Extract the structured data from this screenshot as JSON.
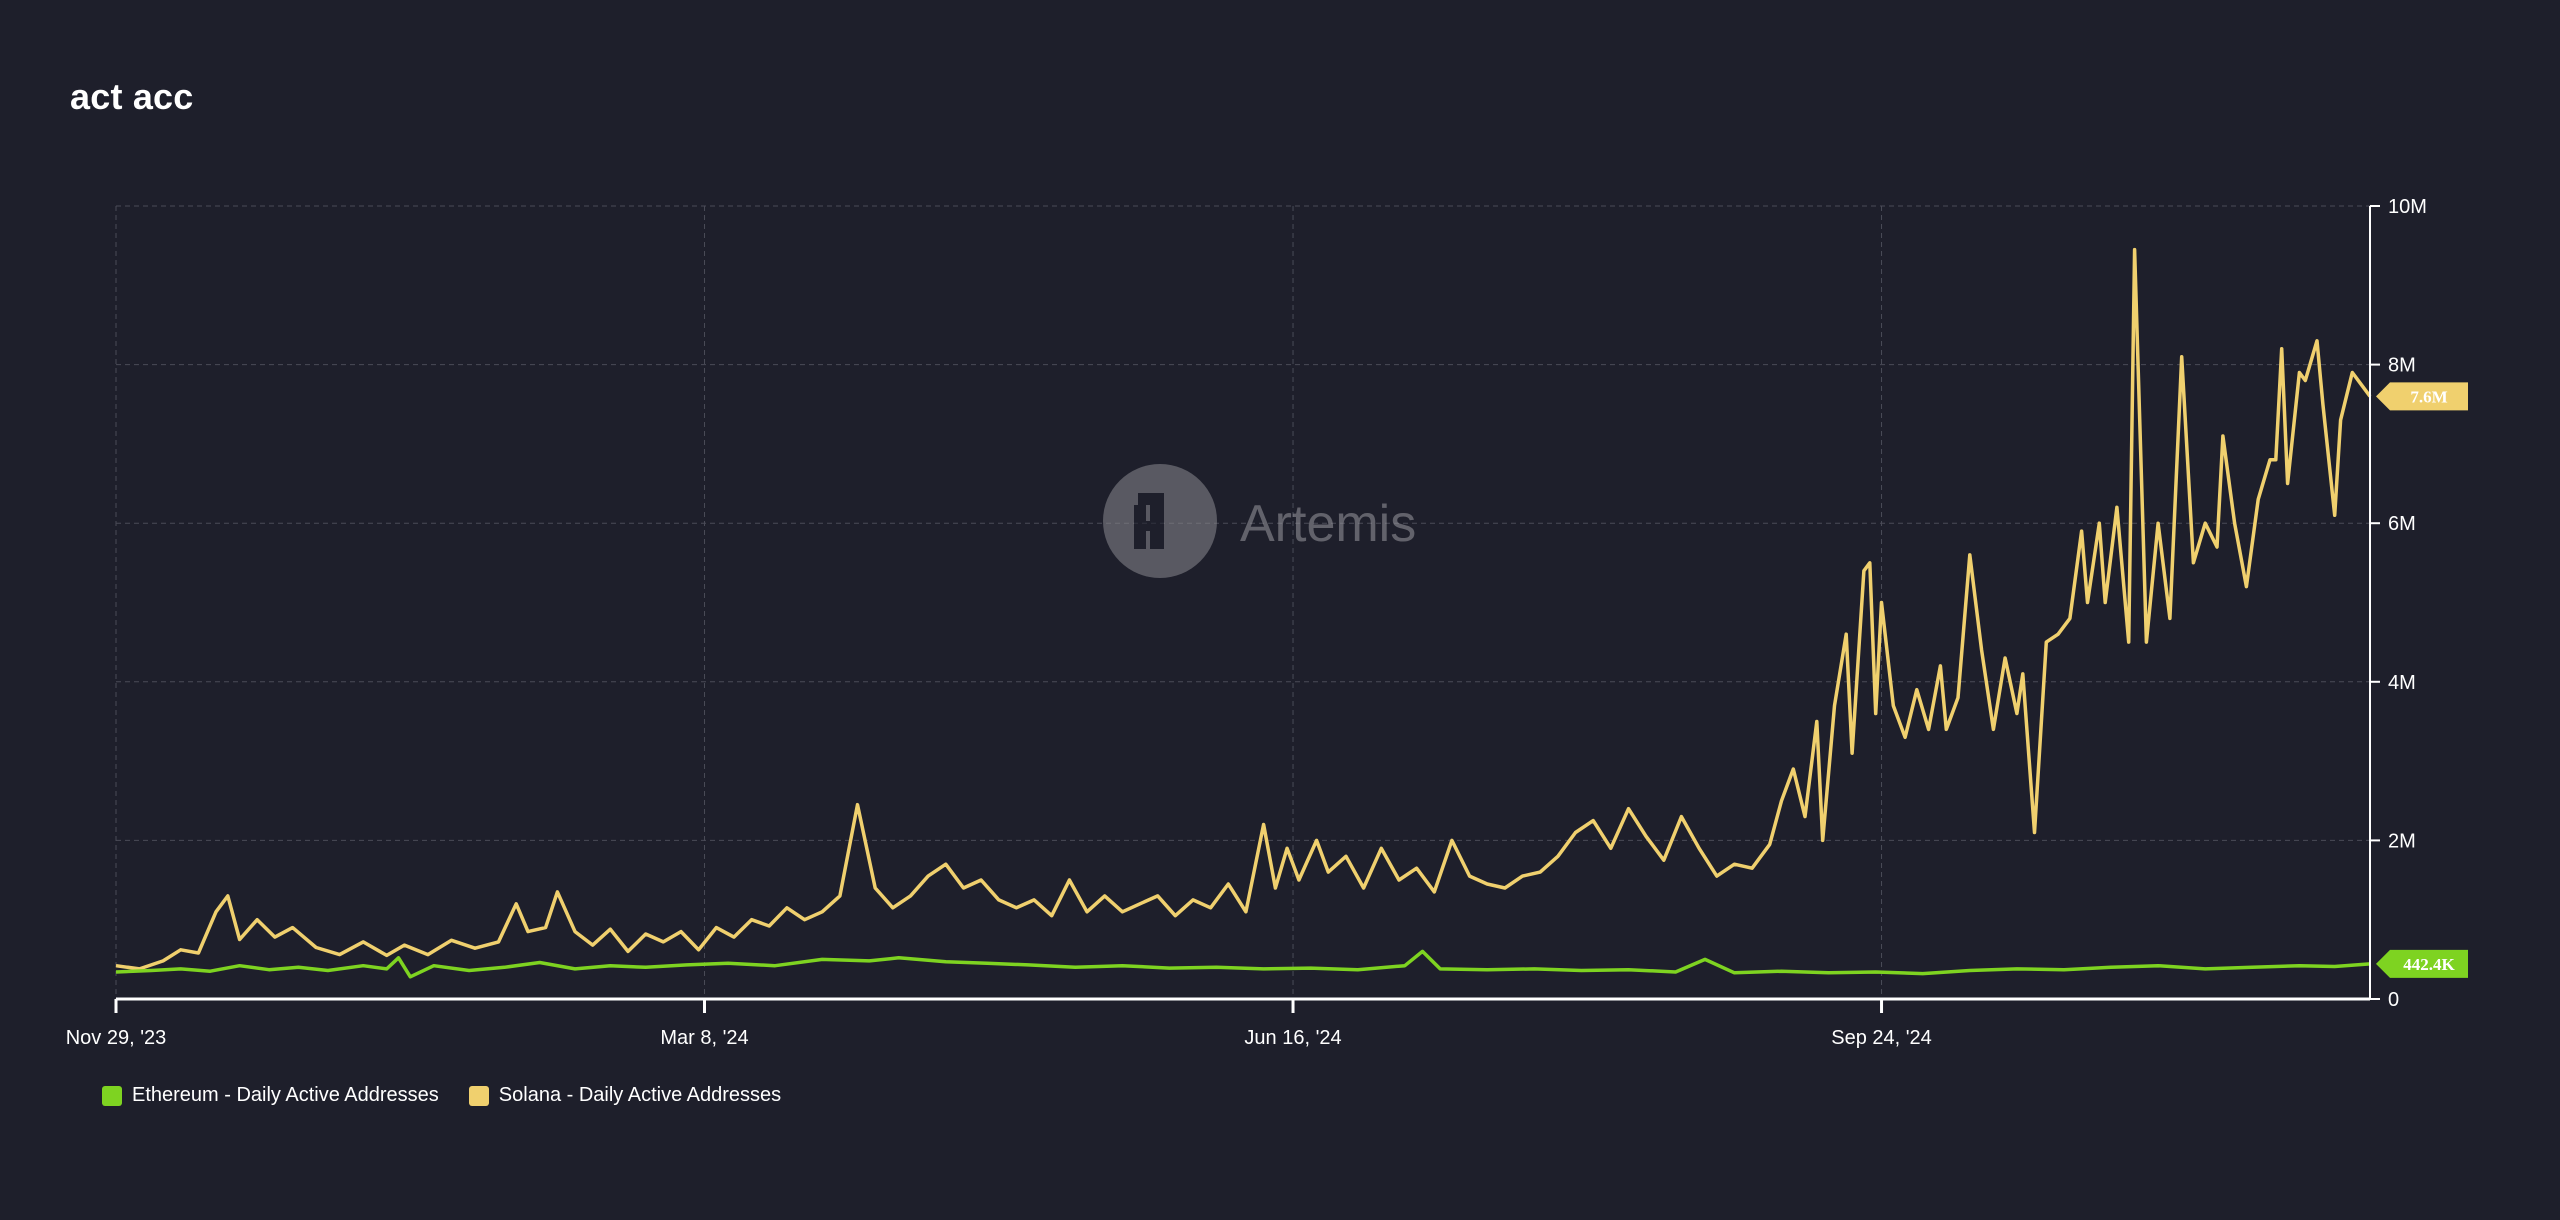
{
  "title": "act acc",
  "watermark": {
    "text": "Artemis",
    "icon": "artemis-logo-icon"
  },
  "colors": {
    "background": "#1e1f2b",
    "ethereum": "#7ed321",
    "solana": "#f0d06e",
    "grid": "#4a4b57",
    "axis": "#ffffff",
    "text": "#ffffff"
  },
  "legend": [
    {
      "label": "Ethereum - Daily Active Addresses",
      "color": "#7ed321"
    },
    {
      "label": "Solana - Daily Active Addresses",
      "color": "#f0d06e"
    }
  ],
  "last_value_labels": {
    "ethereum": "442.4K",
    "solana": "7.6M"
  },
  "chart_data": {
    "type": "line",
    "x_start": "2023-11-29",
    "x_end": "2024-12-16",
    "x_ticks": [
      {
        "date": "2023-11-29",
        "label": "Nov 29, '23"
      },
      {
        "date": "2024-03-08",
        "label": "Mar 8, '24"
      },
      {
        "date": "2024-06-16",
        "label": "Jun 16, '24"
      },
      {
        "date": "2024-09-24",
        "label": "Sep 24, '24"
      }
    ],
    "y_ticks": [
      {
        "value": 0,
        "label": "0"
      },
      {
        "value": 2000000,
        "label": "2M"
      },
      {
        "value": 4000000,
        "label": "4M"
      },
      {
        "value": 6000000,
        "label": "6M"
      },
      {
        "value": 8000000,
        "label": "8M"
      },
      {
        "value": 10000000,
        "label": "10M"
      }
    ],
    "ylim": [
      0,
      10000000
    ],
    "grid": true,
    "legend_position": "bottom-left",
    "series": [
      {
        "name": "Solana - Daily Active Addresses",
        "color": "#f0d06e",
        "points": [
          [
            "2023-11-29",
            420000
          ],
          [
            "2023-12-03",
            380000
          ],
          [
            "2023-12-07",
            480000
          ],
          [
            "2023-12-10",
            620000
          ],
          [
            "2023-12-13",
            580000
          ],
          [
            "2023-12-16",
            1100000
          ],
          [
            "2023-12-18",
            1300000
          ],
          [
            "2023-12-20",
            750000
          ],
          [
            "2023-12-23",
            1000000
          ],
          [
            "2023-12-26",
            780000
          ],
          [
            "2023-12-29",
            900000
          ],
          [
            "2024-01-02",
            650000
          ],
          [
            "2024-01-06",
            560000
          ],
          [
            "2024-01-10",
            720000
          ],
          [
            "2024-01-14",
            550000
          ],
          [
            "2024-01-17",
            680000
          ],
          [
            "2024-01-21",
            560000
          ],
          [
            "2024-01-25",
            740000
          ],
          [
            "2024-01-29",
            640000
          ],
          [
            "2024-02-02",
            720000
          ],
          [
            "2024-02-05",
            1200000
          ],
          [
            "2024-02-07",
            850000
          ],
          [
            "2024-02-10",
            900000
          ],
          [
            "2024-02-12",
            1350000
          ],
          [
            "2024-02-15",
            850000
          ],
          [
            "2024-02-18",
            680000
          ],
          [
            "2024-02-21",
            880000
          ],
          [
            "2024-02-24",
            600000
          ],
          [
            "2024-02-27",
            820000
          ],
          [
            "2024-03-01",
            720000
          ],
          [
            "2024-03-04",
            850000
          ],
          [
            "2024-03-07",
            620000
          ],
          [
            "2024-03-10",
            900000
          ],
          [
            "2024-03-13",
            780000
          ],
          [
            "2024-03-16",
            1000000
          ],
          [
            "2024-03-19",
            920000
          ],
          [
            "2024-03-22",
            1150000
          ],
          [
            "2024-03-25",
            1000000
          ],
          [
            "2024-03-28",
            1100000
          ],
          [
            "2024-03-31",
            1300000
          ],
          [
            "2024-04-03",
            2450000
          ],
          [
            "2024-04-06",
            1400000
          ],
          [
            "2024-04-09",
            1150000
          ],
          [
            "2024-04-12",
            1300000
          ],
          [
            "2024-04-15",
            1550000
          ],
          [
            "2024-04-18",
            1700000
          ],
          [
            "2024-04-21",
            1400000
          ],
          [
            "2024-04-24",
            1500000
          ],
          [
            "2024-04-27",
            1250000
          ],
          [
            "2024-04-30",
            1150000
          ],
          [
            "2024-05-03",
            1250000
          ],
          [
            "2024-05-06",
            1050000
          ],
          [
            "2024-05-09",
            1500000
          ],
          [
            "2024-05-12",
            1100000
          ],
          [
            "2024-05-15",
            1300000
          ],
          [
            "2024-05-18",
            1100000
          ],
          [
            "2024-05-21",
            1200000
          ],
          [
            "2024-05-24",
            1300000
          ],
          [
            "2024-05-27",
            1050000
          ],
          [
            "2024-05-30",
            1250000
          ],
          [
            "2024-06-02",
            1150000
          ],
          [
            "2024-06-05",
            1450000
          ],
          [
            "2024-06-08",
            1100000
          ],
          [
            "2024-06-11",
            2200000
          ],
          [
            "2024-06-13",
            1400000
          ],
          [
            "2024-06-15",
            1900000
          ],
          [
            "2024-06-17",
            1500000
          ],
          [
            "2024-06-20",
            2000000
          ],
          [
            "2024-06-22",
            1600000
          ],
          [
            "2024-06-25",
            1800000
          ],
          [
            "2024-06-28",
            1400000
          ],
          [
            "2024-07-01",
            1900000
          ],
          [
            "2024-07-04",
            1500000
          ],
          [
            "2024-07-07",
            1650000
          ],
          [
            "2024-07-10",
            1350000
          ],
          [
            "2024-07-13",
            2000000
          ],
          [
            "2024-07-16",
            1550000
          ],
          [
            "2024-07-19",
            1450000
          ],
          [
            "2024-07-22",
            1400000
          ],
          [
            "2024-07-25",
            1550000
          ],
          [
            "2024-07-28",
            1600000
          ],
          [
            "2024-07-31",
            1800000
          ],
          [
            "2024-08-03",
            2100000
          ],
          [
            "2024-08-06",
            2250000
          ],
          [
            "2024-08-09",
            1900000
          ],
          [
            "2024-08-12",
            2400000
          ],
          [
            "2024-08-15",
            2050000
          ],
          [
            "2024-08-18",
            1750000
          ],
          [
            "2024-08-21",
            2300000
          ],
          [
            "2024-08-24",
            1900000
          ],
          [
            "2024-08-27",
            1550000
          ],
          [
            "2024-08-30",
            1700000
          ],
          [
            "2024-09-02",
            1650000
          ],
          [
            "2024-09-05",
            1950000
          ],
          [
            "2024-09-07",
            2500000
          ],
          [
            "2024-09-09",
            2900000
          ],
          [
            "2024-09-11",
            2300000
          ],
          [
            "2024-09-13",
            3500000
          ],
          [
            "2024-09-14",
            2000000
          ],
          [
            "2024-09-16",
            3700000
          ],
          [
            "2024-09-18",
            4600000
          ],
          [
            "2024-09-19",
            3100000
          ],
          [
            "2024-09-21",
            5400000
          ],
          [
            "2024-09-22",
            5500000
          ],
          [
            "2024-09-23",
            3600000
          ],
          [
            "2024-09-24",
            5000000
          ],
          [
            "2024-09-26",
            3700000
          ],
          [
            "2024-09-28",
            3300000
          ],
          [
            "2024-09-30",
            3900000
          ],
          [
            "2024-10-02",
            3400000
          ],
          [
            "2024-10-04",
            4200000
          ],
          [
            "2024-10-05",
            3400000
          ],
          [
            "2024-10-07",
            3800000
          ],
          [
            "2024-10-09",
            5600000
          ],
          [
            "2024-10-11",
            4400000
          ],
          [
            "2024-10-13",
            3400000
          ],
          [
            "2024-10-15",
            4300000
          ],
          [
            "2024-10-17",
            3600000
          ],
          [
            "2024-10-18",
            4100000
          ],
          [
            "2024-10-20",
            2100000
          ],
          [
            "2024-10-22",
            4500000
          ],
          [
            "2024-10-24",
            4600000
          ],
          [
            "2024-10-26",
            4800000
          ],
          [
            "2024-10-28",
            5900000
          ],
          [
            "2024-10-29",
            5000000
          ],
          [
            "2024-10-31",
            6000000
          ],
          [
            "2024-11-01",
            5000000
          ],
          [
            "2024-11-03",
            6200000
          ],
          [
            "2024-11-05",
            4500000
          ],
          [
            "2024-11-06",
            9450000
          ],
          [
            "2024-11-08",
            4500000
          ],
          [
            "2024-11-10",
            6000000
          ],
          [
            "2024-11-12",
            4800000
          ],
          [
            "2024-11-14",
            8100000
          ],
          [
            "2024-11-16",
            5500000
          ],
          [
            "2024-11-18",
            6000000
          ],
          [
            "2024-11-20",
            5700000
          ],
          [
            "2024-11-21",
            7100000
          ],
          [
            "2024-11-23",
            6000000
          ],
          [
            "2024-11-25",
            5200000
          ],
          [
            "2024-11-27",
            6300000
          ],
          [
            "2024-11-29",
            6800000
          ],
          [
            "2024-11-30",
            6800000
          ],
          [
            "2024-12-01",
            8200000
          ],
          [
            "2024-12-02",
            6500000
          ],
          [
            "2024-12-04",
            7900000
          ],
          [
            "2024-12-05",
            7800000
          ],
          [
            "2024-12-07",
            8300000
          ],
          [
            "2024-12-08",
            7500000
          ],
          [
            "2024-12-10",
            6100000
          ],
          [
            "2024-12-11",
            7300000
          ],
          [
            "2024-12-13",
            7900000
          ],
          [
            "2024-12-16",
            7600000
          ]
        ]
      },
      {
        "name": "Ethereum - Daily Active Addresses",
        "color": "#7ed321",
        "points": [
          [
            "2023-11-29",
            340000
          ],
          [
            "2023-12-05",
            360000
          ],
          [
            "2023-12-10",
            380000
          ],
          [
            "2023-12-15",
            350000
          ],
          [
            "2023-12-20",
            420000
          ],
          [
            "2023-12-25",
            370000
          ],
          [
            "2023-12-30",
            400000
          ],
          [
            "2024-01-04",
            360000
          ],
          [
            "2024-01-10",
            420000
          ],
          [
            "2024-01-14",
            380000
          ],
          [
            "2024-01-16",
            520000
          ],
          [
            "2024-01-18",
            280000
          ],
          [
            "2024-01-22",
            420000
          ],
          [
            "2024-01-28",
            360000
          ],
          [
            "2024-02-03",
            400000
          ],
          [
            "2024-02-09",
            460000
          ],
          [
            "2024-02-15",
            380000
          ],
          [
            "2024-02-21",
            420000
          ],
          [
            "2024-02-27",
            400000
          ],
          [
            "2024-03-05",
            430000
          ],
          [
            "2024-03-12",
            450000
          ],
          [
            "2024-03-20",
            420000
          ],
          [
            "2024-03-28",
            500000
          ],
          [
            "2024-04-05",
            480000
          ],
          [
            "2024-04-10",
            520000
          ],
          [
            "2024-04-18",
            470000
          ],
          [
            "2024-04-25",
            450000
          ],
          [
            "2024-05-02",
            430000
          ],
          [
            "2024-05-10",
            400000
          ],
          [
            "2024-05-18",
            420000
          ],
          [
            "2024-05-26",
            390000
          ],
          [
            "2024-06-03",
            400000
          ],
          [
            "2024-06-11",
            380000
          ],
          [
            "2024-06-19",
            390000
          ],
          [
            "2024-06-27",
            370000
          ],
          [
            "2024-07-05",
            420000
          ],
          [
            "2024-07-08",
            600000
          ],
          [
            "2024-07-11",
            380000
          ],
          [
            "2024-07-19",
            370000
          ],
          [
            "2024-07-27",
            380000
          ],
          [
            "2024-08-04",
            360000
          ],
          [
            "2024-08-12",
            370000
          ],
          [
            "2024-08-20",
            340000
          ],
          [
            "2024-08-25",
            500000
          ],
          [
            "2024-08-30",
            330000
          ],
          [
            "2024-09-07",
            350000
          ],
          [
            "2024-09-15",
            330000
          ],
          [
            "2024-09-23",
            340000
          ],
          [
            "2024-10-01",
            320000
          ],
          [
            "2024-10-09",
            360000
          ],
          [
            "2024-10-17",
            380000
          ],
          [
            "2024-10-25",
            370000
          ],
          [
            "2024-11-02",
            400000
          ],
          [
            "2024-11-10",
            420000
          ],
          [
            "2024-11-18",
            380000
          ],
          [
            "2024-11-26",
            400000
          ],
          [
            "2024-12-04",
            420000
          ],
          [
            "2024-12-10",
            410000
          ],
          [
            "2024-12-16",
            442400
          ]
        ]
      }
    ]
  }
}
